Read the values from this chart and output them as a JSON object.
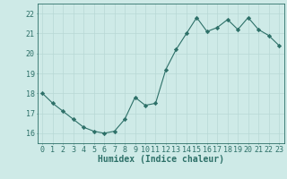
{
  "x": [
    0,
    1,
    2,
    3,
    4,
    5,
    6,
    7,
    8,
    9,
    10,
    11,
    12,
    13,
    14,
    15,
    16,
    17,
    18,
    19,
    20,
    21,
    22,
    23
  ],
  "y": [
    18.0,
    17.5,
    17.1,
    16.7,
    16.3,
    16.1,
    16.0,
    16.1,
    16.7,
    17.8,
    17.4,
    17.5,
    19.2,
    20.2,
    21.0,
    21.8,
    21.1,
    21.3,
    21.7,
    21.2,
    21.8,
    21.2,
    20.9,
    20.4
  ],
  "line_color": "#2d7068",
  "marker": "D",
  "marker_size": 2.2,
  "bg_color": "#ceeae7",
  "grid_color": "#b8d8d5",
  "xlabel": "Humidex (Indice chaleur)",
  "xlabel_fontsize": 7,
  "tick_fontsize": 6,
  "ylim": [
    15.5,
    22.5
  ],
  "xlim": [
    -0.5,
    23.5
  ],
  "yticks": [
    16,
    17,
    18,
    19,
    20,
    21,
    22
  ],
  "xticks": [
    0,
    1,
    2,
    3,
    4,
    5,
    6,
    7,
    8,
    9,
    10,
    11,
    12,
    13,
    14,
    15,
    16,
    17,
    18,
    19,
    20,
    21,
    22,
    23
  ]
}
